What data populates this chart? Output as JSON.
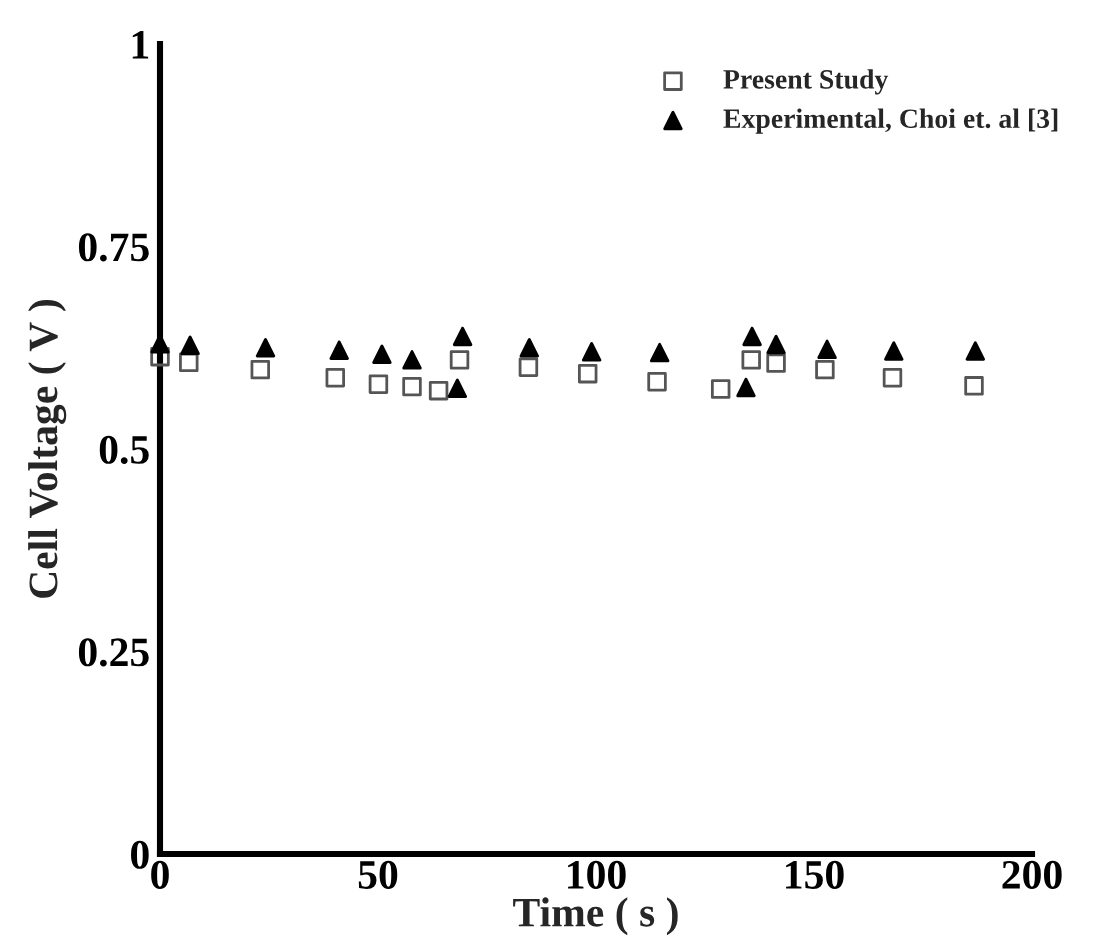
{
  "chart_data": {
    "type": "scatter",
    "xlabel": "Time ( s )",
    "ylabel": "Cell Voltage ( V )",
    "xlim": [
      0,
      200
    ],
    "xticks": [
      0,
      50,
      100,
      150,
      200
    ],
    "ylim": [
      0,
      1
    ],
    "yticks": [
      0,
      0.25,
      0.5,
      0.75,
      1
    ],
    "grid": false,
    "legend": "top right",
    "series": [
      {
        "name": "Present Study",
        "color": "#555555",
        "marker": "square",
        "x": [
          0,
          6.6,
          23,
          40.2,
          50.1,
          57.8,
          63.9,
          68.7,
          84.5,
          98.1,
          114,
          128.6,
          135.6,
          141.3,
          152.5,
          168,
          186.7
        ],
        "values": [
          0.614,
          0.607,
          0.598,
          0.588,
          0.58,
          0.577,
          0.572,
          0.61,
          0.601,
          0.593,
          0.583,
          0.574,
          0.61,
          0.606,
          0.598,
          0.588,
          0.578
        ]
      },
      {
        "name": "Experimental, Choi et. al [3]",
        "color": "#000000",
        "marker": "triangle",
        "x": [
          0,
          6.9,
          24.2,
          41.1,
          50.9,
          57.8,
          68.2,
          69.4,
          84.7,
          99,
          114.6,
          134.4,
          135.8,
          141.3,
          153,
          168.3,
          187
        ],
        "values": [
          0.63,
          0.628,
          0.625,
          0.622,
          0.617,
          0.61,
          0.575,
          0.639,
          0.625,
          0.62,
          0.619,
          0.576,
          0.639,
          0.629,
          0.623,
          0.621,
          0.621
        ]
      }
    ]
  }
}
